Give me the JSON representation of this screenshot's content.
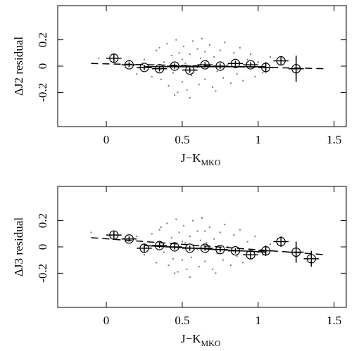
{
  "chart_data": [
    {
      "type": "scatter",
      "ylabel": "ΔJ2 residual",
      "xlabel": "J−K",
      "xlabel_sub": "MKO",
      "xlim": [
        -0.32,
        1.58
      ],
      "ylim": [
        -0.46,
        0.46
      ],
      "xticks": [
        0,
        0.5,
        1,
        1.5
      ],
      "yticks": [
        -0.2,
        0,
        0.2
      ],
      "dot_color": "#777777",
      "scatter": {
        "x": [
          0.25,
          0.3,
          0.33,
          0.36,
          0.38,
          0.4,
          0.41,
          0.43,
          0.44,
          0.46,
          0.47,
          0.48,
          0.5,
          0.51,
          0.52,
          0.53,
          0.55,
          0.56,
          0.57,
          0.58,
          0.6,
          0.61,
          0.62,
          0.63,
          0.65,
          0.66,
          0.68,
          0.7,
          0.71,
          0.73,
          0.75,
          0.77,
          0.78,
          0.8,
          0.82,
          0.84,
          0.86,
          0.88,
          0.9,
          0.93,
          0.95,
          0.98,
          1.0,
          1.03,
          1.08,
          0.2,
          0.15,
          0.45,
          0.55,
          0.65,
          0.35,
          0.72,
          0.5,
          0.6,
          -0.05
        ],
        "values": [
          0.05,
          -0.08,
          0.12,
          -0.1,
          0.03,
          0.17,
          -0.15,
          0.08,
          -0.05,
          0.2,
          -0.2,
          0.1,
          -0.12,
          0.15,
          0.02,
          -0.18,
          0.09,
          -0.07,
          0.19,
          -0.03,
          0.13,
          -0.14,
          0.06,
          0.21,
          -0.1,
          0.04,
          0.16,
          -0.16,
          0.07,
          -0.04,
          0.12,
          -0.09,
          0.18,
          0.01,
          -0.13,
          0.1,
          -0.06,
          0.14,
          -0.11,
          0.05,
          0.09,
          -0.08,
          0.03,
          -0.05,
          0.07,
          -0.06,
          0.04,
          -0.22,
          -0.24,
          0.11,
          0.14,
          -0.19,
          0.05,
          -0.01,
          0.06
        ]
      },
      "binned": {
        "x": [
          0.05,
          0.15,
          0.25,
          0.35,
          0.45,
          0.55,
          0.65,
          0.75,
          0.85,
          0.95,
          1.05,
          1.15,
          1.25
        ],
        "values": [
          0.06,
          0.01,
          -0.01,
          -0.02,
          0.0,
          -0.03,
          0.01,
          0.0,
          0.02,
          0.01,
          -0.01,
          0.04,
          -0.02
        ],
        "errors": [
          0.03,
          0.02,
          0.02,
          0.02,
          0.02,
          0.02,
          0.02,
          0.02,
          0.02,
          0.02,
          0.04,
          0.03,
          0.1
        ],
        "xerror": 0.05
      },
      "fit": {
        "x": [
          -0.1,
          1.45
        ],
        "values": [
          0.02,
          -0.02
        ]
      },
      "local_fit": {
        "x": [
          0.25,
          1.05
        ],
        "values": [
          -0.005,
          -0.005
        ]
      }
    },
    {
      "type": "scatter",
      "ylabel": "ΔJ3 residual",
      "xlabel": "J−K",
      "xlabel_sub": "MKO",
      "xlim": [
        -0.32,
        1.58
      ],
      "ylim": [
        -0.46,
        0.46
      ],
      "xticks": [
        0,
        0.5,
        1,
        1.5
      ],
      "yticks": [
        -0.2,
        0,
        0.2
      ],
      "dot_color": "#777777",
      "scatter": {
        "x": [
          0.25,
          0.3,
          0.33,
          0.36,
          0.38,
          0.4,
          0.41,
          0.43,
          0.44,
          0.46,
          0.47,
          0.48,
          0.5,
          0.51,
          0.52,
          0.53,
          0.55,
          0.56,
          0.57,
          0.58,
          0.6,
          0.61,
          0.62,
          0.63,
          0.65,
          0.66,
          0.68,
          0.7,
          0.71,
          0.73,
          0.75,
          0.77,
          0.78,
          0.8,
          0.82,
          0.84,
          0.86,
          0.88,
          0.9,
          0.93,
          0.95,
          0.98,
          1.0,
          1.03,
          1.08,
          0.2,
          0.15,
          0.45,
          0.55,
          0.65,
          0.35,
          0.72,
          0.5,
          0.6,
          -0.1
        ],
        "values": [
          -0.06,
          0.1,
          -0.12,
          0.15,
          -0.04,
          0.18,
          -0.14,
          0.07,
          -0.09,
          0.21,
          -0.19,
          0.11,
          -0.1,
          0.16,
          0.03,
          -0.17,
          0.08,
          -0.08,
          0.2,
          -0.02,
          0.12,
          -0.15,
          0.05,
          0.22,
          -0.11,
          0.03,
          0.15,
          -0.17,
          0.06,
          -0.05,
          0.11,
          -0.1,
          0.17,
          0.0,
          -0.14,
          0.09,
          -0.07,
          0.13,
          -0.12,
          0.04,
          -0.09,
          0.08,
          -0.04,
          -0.06,
          0.02,
          0.08,
          0.05,
          -0.2,
          -0.23,
          0.12,
          0.13,
          -0.2,
          0.04,
          -0.02,
          0.11
        ]
      },
      "binned": {
        "x": [
          0.05,
          0.15,
          0.25,
          0.35,
          0.45,
          0.55,
          0.65,
          0.75,
          0.85,
          0.95,
          1.05,
          1.15,
          1.25,
          1.35
        ],
        "values": [
          0.09,
          0.06,
          -0.01,
          0.01,
          0.0,
          -0.01,
          -0.01,
          -0.02,
          -0.03,
          -0.06,
          -0.03,
          0.04,
          -0.04,
          -0.09
        ],
        "errors": [
          0.03,
          0.02,
          0.03,
          0.02,
          0.02,
          0.02,
          0.02,
          0.02,
          0.02,
          0.03,
          0.04,
          0.04,
          0.08,
          0.06
        ],
        "xerror": 0.05
      },
      "fit": {
        "x": [
          -0.1,
          1.45
        ],
        "values": [
          0.07,
          -0.06
        ]
      },
      "local_fit": {
        "x": [
          0.25,
          1.05
        ],
        "values": [
          0.01,
          -0.04
        ]
      }
    }
  ]
}
